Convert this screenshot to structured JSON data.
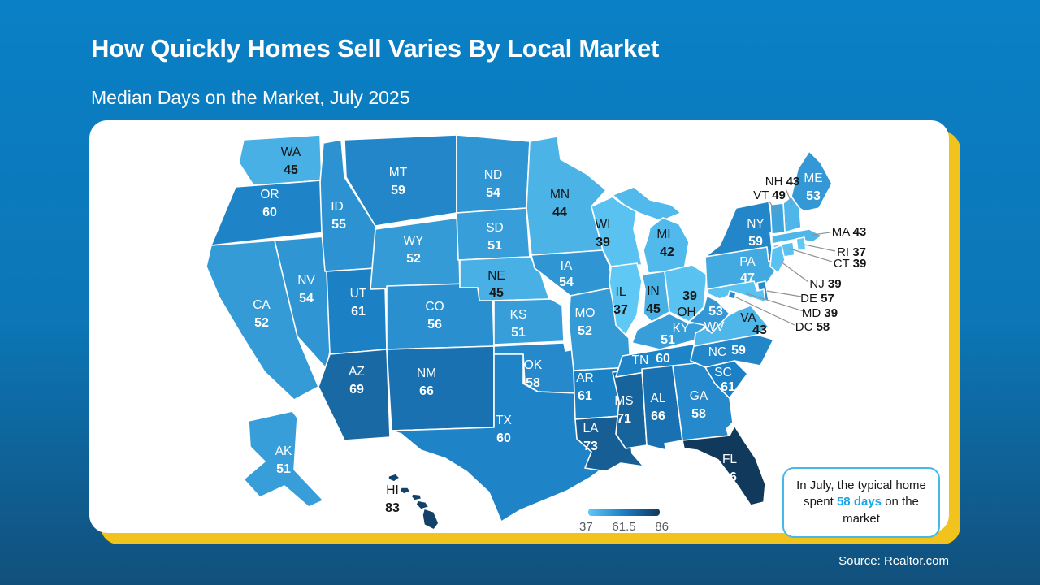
{
  "header": {
    "title": "How Quickly Homes Sell Varies By Local Market",
    "subtitle": "Median Days on the Market, July 2025"
  },
  "chart_data": {
    "type": "choropleth",
    "title": "How Quickly Homes Sell Varies By Local Market",
    "subtitle": "Median Days on the Market, July 2025",
    "metric": "Median days on the market",
    "region": "United States by state",
    "states": [
      {
        "abbr": "WA",
        "value": 45
      },
      {
        "abbr": "OR",
        "value": 60
      },
      {
        "abbr": "CA",
        "value": 52
      },
      {
        "abbr": "NV",
        "value": 54
      },
      {
        "abbr": "ID",
        "value": 55
      },
      {
        "abbr": "UT",
        "value": 61
      },
      {
        "abbr": "AZ",
        "value": 69
      },
      {
        "abbr": "MT",
        "value": 59
      },
      {
        "abbr": "WY",
        "value": 52
      },
      {
        "abbr": "CO",
        "value": 56
      },
      {
        "abbr": "NM",
        "value": 66
      },
      {
        "abbr": "ND",
        "value": 54
      },
      {
        "abbr": "SD",
        "value": 51
      },
      {
        "abbr": "NE",
        "value": 45
      },
      {
        "abbr": "KS",
        "value": 51
      },
      {
        "abbr": "OK",
        "value": 58
      },
      {
        "abbr": "TX",
        "value": 60
      },
      {
        "abbr": "MN",
        "value": 44
      },
      {
        "abbr": "IA",
        "value": 54
      },
      {
        "abbr": "MO",
        "value": 52
      },
      {
        "abbr": "AR",
        "value": 61
      },
      {
        "abbr": "LA",
        "value": 73
      },
      {
        "abbr": "WI",
        "value": 39
      },
      {
        "abbr": "IL",
        "value": 37
      },
      {
        "abbr": "MS",
        "value": 71
      },
      {
        "abbr": "MI",
        "value": 42
      },
      {
        "abbr": "IN",
        "value": 45
      },
      {
        "abbr": "OH",
        "value": 39
      },
      {
        "abbr": "KY",
        "value": 51
      },
      {
        "abbr": "TN",
        "value": 60
      },
      {
        "abbr": "AL",
        "value": 66
      },
      {
        "abbr": "GA",
        "value": 58
      },
      {
        "abbr": "FL",
        "value": 86
      },
      {
        "abbr": "SC",
        "value": 61
      },
      {
        "abbr": "NC",
        "value": 59
      },
      {
        "abbr": "VA",
        "value": 43
      },
      {
        "abbr": "WV",
        "value": 53
      },
      {
        "abbr": "PA",
        "value": 47
      },
      {
        "abbr": "NY",
        "value": 59
      },
      {
        "abbr": "ME",
        "value": 53
      },
      {
        "abbr": "NH",
        "value": 43
      },
      {
        "abbr": "VT",
        "value": 49
      },
      {
        "abbr": "MA",
        "value": 43
      },
      {
        "abbr": "RI",
        "value": 37
      },
      {
        "abbr": "CT",
        "value": 39
      },
      {
        "abbr": "NJ",
        "value": 39
      },
      {
        "abbr": "DE",
        "value": 57
      },
      {
        "abbr": "MD",
        "value": 39
      },
      {
        "abbr": "DC",
        "value": 58
      },
      {
        "abbr": "AK",
        "value": 51
      },
      {
        "abbr": "HI",
        "value": 83
      }
    ],
    "color_scale": {
      "min": 37,
      "mid": 61.5,
      "max": 86,
      "colors": [
        "#5fc8f5",
        "#1b7ec4",
        "#11395c"
      ]
    },
    "legend_ticks": [
      "37",
      "61.5",
      "86"
    ],
    "legend_position": "bottom-center"
  },
  "callout": {
    "text_before": "In July, the typical home spent",
    "highlight": "58 days",
    "text_after": "on the market",
    "highlight_color": "#1aa7e8"
  },
  "footer": {
    "source": "Source: Realtor.com"
  },
  "theme": {
    "background_top": "#0a80c6",
    "background_bottom": "#11507c",
    "card": "#ffffff",
    "accent_shadow": "#f2c31c",
    "callout_border": "#45b8e8",
    "state_border": "#ffffff"
  }
}
